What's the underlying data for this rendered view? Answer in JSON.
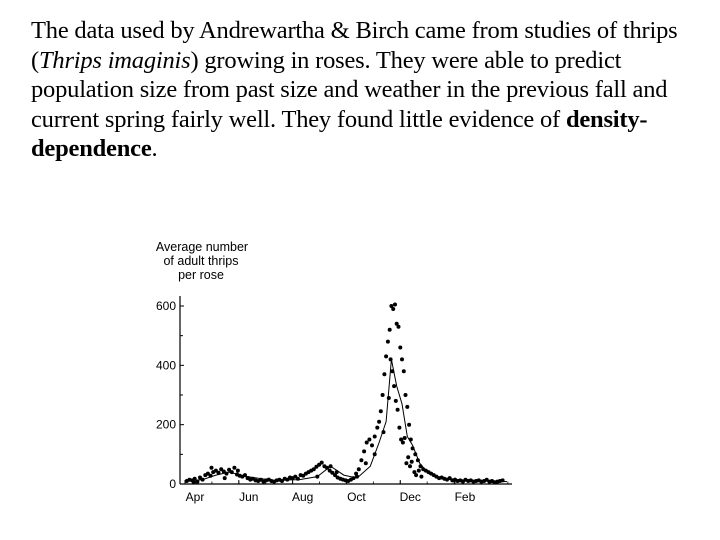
{
  "slide": {
    "text_before_species": "The data used by Andrewartha & Birch came from studies of thrips (",
    "species": "Thrips imaginis",
    "text_after_species": ") growing in roses. They were able to predict population size from past size and weather in the previous fall and current spring fairly well. They found little evidence of ",
    "emphasis_term": "density-dependence",
    "text_end": "."
  },
  "chart_data": {
    "type": "scatter",
    "title": "",
    "ylabel_lines": [
      "Average number",
      "of adult thrips",
      "per rose"
    ],
    "xlabel": "",
    "ylim": [
      0,
      600
    ],
    "yticks": [
      0,
      200,
      400,
      600
    ],
    "xlim": [
      0,
      365
    ],
    "x_tick_labels": [
      "Apr",
      "Jun",
      "Aug",
      "Oct",
      "Dec",
      "Feb"
    ],
    "x_tick_positions": [
      0,
      61,
      122,
      183,
      244,
      306
    ],
    "grid": false,
    "legend": "none",
    "series": [
      {
        "kind": "points",
        "x": [
          2,
          5,
          8,
          11,
          14,
          17,
          20,
          23,
          26,
          29,
          32,
          35,
          38,
          41,
          44,
          47,
          50,
          53,
          56,
          59,
          62,
          65,
          68,
          71,
          74,
          77,
          80,
          83,
          86,
          89,
          92,
          95,
          98,
          101,
          104,
          107,
          110,
          113,
          116,
          119,
          122,
          125,
          128,
          131,
          134,
          137,
          140,
          143,
          146,
          149,
          152,
          155,
          158,
          161,
          164,
          167,
          170,
          173,
          176,
          179,
          182,
          185,
          188,
          191,
          194,
          197,
          200,
          203,
          206,
          209,
          212,
          215,
          218,
          220,
          222,
          224,
          226,
          228,
          230,
          232,
          234,
          236,
          238,
          240,
          242,
          244,
          246,
          248,
          250,
          252,
          254,
          256,
          258,
          261,
          264,
          267,
          270,
          273,
          276,
          279,
          282,
          285,
          288,
          291,
          294,
          297,
          300,
          303,
          306,
          309,
          312,
          315,
          318,
          321,
          324,
          327,
          330,
          333,
          336,
          339,
          342,
          345,
          348,
          351,
          354,
          357,
          360,
          10,
          30,
          45,
          60,
          72,
          150,
          165,
          172,
          195,
          205,
          215,
          225,
          231,
          233,
          235,
          237,
          239,
          241,
          243,
          245,
          247,
          249,
          251,
          253,
          255,
          257,
          260,
          262,
          265,
          268
        ],
        "y": [
          10,
          14,
          12,
          18,
          8,
          22,
          15,
          30,
          35,
          28,
          40,
          45,
          38,
          50,
          42,
          35,
          48,
          40,
          55,
          32,
          28,
          25,
          30,
          20,
          15,
          18,
          12,
          10,
          14,
          8,
          12,
          15,
          10,
          8,
          12,
          14,
          10,
          18,
          15,
          22,
          20,
          25,
          18,
          30,
          28,
          35,
          40,
          45,
          50,
          58,
          65,
          72,
          60,
          55,
          45,
          38,
          30,
          22,
          18,
          15,
          12,
          10,
          15,
          20,
          35,
          50,
          80,
          110,
          140,
          150,
          130,
          160,
          190,
          210,
          245,
          300,
          370,
          430,
          480,
          520,
          600,
          590,
          605,
          540,
          530,
          460,
          420,
          380,
          300,
          260,
          200,
          150,
          120,
          100,
          80,
          60,
          50,
          45,
          40,
          35,
          30,
          25,
          20,
          22,
          18,
          15,
          20,
          12,
          15,
          10,
          12,
          8,
          14,
          10,
          12,
          8,
          10,
          12,
          8,
          10,
          14,
          8,
          10,
          6,
          8,
          10,
          12,
          5,
          55,
          20,
          45,
          20,
          25,
          60,
          40,
          25,
          70,
          100,
          175,
          290,
          420,
          380,
          330,
          280,
          250,
          190,
          150,
          140,
          155,
          70,
          90,
          60,
          75,
          40,
          30,
          45,
          25
        ]
      },
      {
        "kind": "line",
        "x": [
          0,
          20,
          35,
          50,
          70,
          100,
          130,
          150,
          165,
          180,
          195,
          210,
          220,
          228,
          234,
          240,
          246,
          252,
          258,
          266,
          276,
          290,
          310,
          340,
          365
        ],
        "y": [
          10,
          15,
          30,
          40,
          25,
          12,
          15,
          25,
          60,
          30,
          20,
          60,
          140,
          210,
          420,
          330,
          270,
          160,
          130,
          70,
          35,
          20,
          15,
          10,
          8
        ]
      }
    ]
  }
}
